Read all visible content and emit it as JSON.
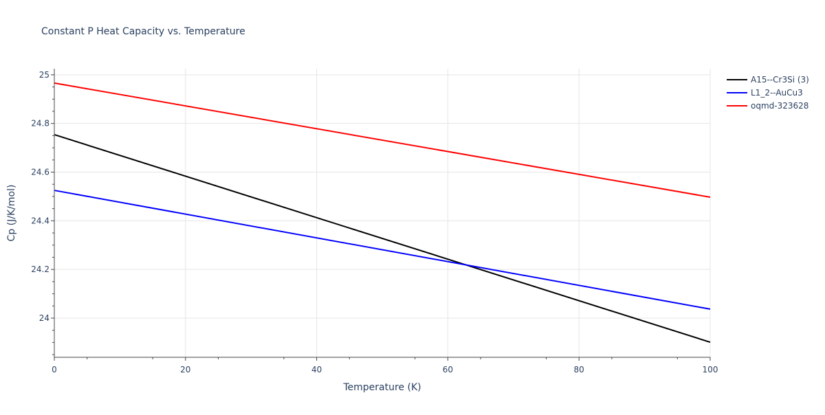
{
  "chart_data": {
    "type": "line",
    "title": "Constant P Heat Capacity vs. Temperature",
    "xlabel": "Temperature (K)",
    "ylabel": "Cp (J/K/mol)",
    "xlim": [
      0,
      100
    ],
    "ylim": [
      23.839,
      25.025
    ],
    "xticks": [
      0,
      20,
      40,
      60,
      80,
      100
    ],
    "xtick_labels": [
      "0",
      "20",
      "40",
      "60",
      "80",
      "100"
    ],
    "yticks": [
      24,
      24.2,
      24.4,
      24.6,
      24.8,
      25
    ],
    "ytick_labels": [
      "24",
      "24.2",
      "24.4",
      "24.6",
      "24.8",
      "25"
    ],
    "grid": true,
    "legend_position": "right",
    "series": [
      {
        "name": "A15--Cr3Si (3)",
        "color": "#000000",
        "x": [
          0,
          100
        ],
        "y": [
          24.754,
          23.901
        ]
      },
      {
        "name": "L1_2--AuCu3",
        "color": "#0000ff",
        "x": [
          0,
          100
        ],
        "y": [
          24.525,
          24.037
        ]
      },
      {
        "name": "oqmd-323628",
        "color": "#ff0000",
        "x": [
          0,
          100
        ],
        "y": [
          24.966,
          24.497
        ]
      }
    ]
  }
}
